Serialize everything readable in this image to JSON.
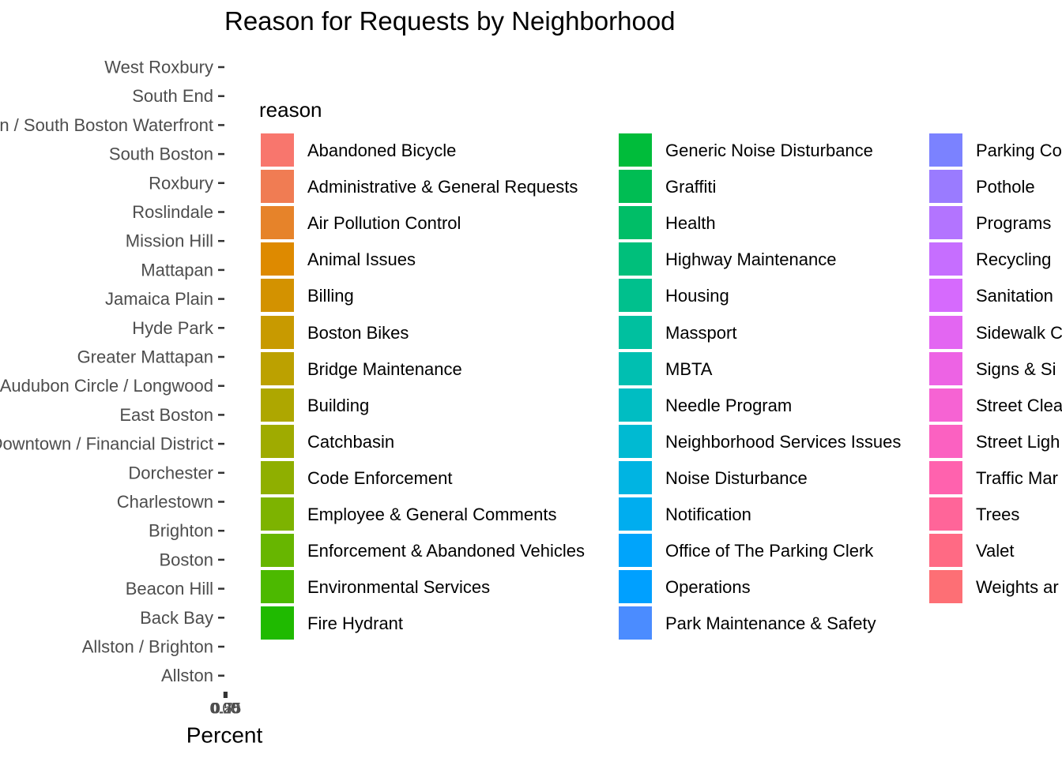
{
  "chart_data": {
    "type": "bar",
    "orientation": "horizontal",
    "stacked": true,
    "title": "Reason for Requests by Neighborhood",
    "xlabel": "Percent",
    "ylabel": "",
    "categories": [
      "West Roxbury",
      "South End",
      "South Boston / South Boston Waterfront",
      "South Boston",
      "Roxbury",
      "Roslindale",
      "Mission Hill",
      "Mattapan",
      "Jamaica Plain",
      "Hyde Park",
      "Greater Mattapan",
      "Fenway / Kenmore / Audubon Circle / Longwood",
      "East Boston",
      "Downtown / Financial District",
      "Dorchester",
      "Charlestown",
      "Brighton",
      "Boston",
      "Beacon Hill",
      "Back Bay",
      "Allston / Brighton",
      "Allston"
    ],
    "x_tick_labels": [
      "0.00",
      "0.25",
      "0.50",
      "0.75"
    ],
    "grid": false,
    "legend": {
      "title": "reason",
      "placement": "right",
      "items": [
        {
          "label": "Abandoned Bicycle",
          "color": "#F8766D"
        },
        {
          "label": "Administrative & General Requests",
          "color": "#F07C53"
        },
        {
          "label": "Air Pollution Control",
          "color": "#E6832A"
        },
        {
          "label": "Animal Issues",
          "color": "#DE8A00"
        },
        {
          "label": "Billing",
          "color": "#D39200"
        },
        {
          "label": "Boston Bikes",
          "color": "#C89A00"
        },
        {
          "label": "Bridge Maintenance",
          "color": "#BCA100"
        },
        {
          "label": "Building",
          "color": "#AEA700"
        },
        {
          "label": "Catchbasin",
          "color": "#9FAB00"
        },
        {
          "label": "Code Enforcement",
          "color": "#8FAF00"
        },
        {
          "label": "Employee & General Comments",
          "color": "#7DB300"
        },
        {
          "label": "Enforcement & Abandoned Vehicles",
          "color": "#67B600"
        },
        {
          "label": "Environmental Services",
          "color": "#4CB900"
        },
        {
          "label": "Fire Hydrant",
          "color": "#1FBA00"
        },
        {
          "label": "Generic Noise Disturbance",
          "color": "#00BC3A"
        },
        {
          "label": "Graffiti",
          "color": "#00BD53"
        },
        {
          "label": "Health",
          "color": "#00BE67"
        },
        {
          "label": "Highway Maintenance",
          "color": "#00BF7B"
        },
        {
          "label": "Housing",
          "color": "#00C08D"
        },
        {
          "label": "Massport",
          "color": "#00C09F"
        },
        {
          "label": "MBTA",
          "color": "#00BFB1"
        },
        {
          "label": "Needle Program",
          "color": "#00BDC2"
        },
        {
          "label": "Neighborhood Services Issues",
          "color": "#00BAD2"
        },
        {
          "label": "Noise Disturbance",
          "color": "#00B4E2"
        },
        {
          "label": "Notification",
          "color": "#00ADEF"
        },
        {
          "label": "Office of The Parking Clerk",
          "color": "#00A4FB"
        },
        {
          "label": "Operations",
          "color": "#00A0FF"
        },
        {
          "label": "Park Maintenance & Safety",
          "color": "#4B8CFF"
        },
        {
          "label": "Parking Co",
          "color": "#7B82FF"
        },
        {
          "label": "Pothole",
          "color": "#9A7BFF"
        },
        {
          "label": "Programs",
          "color": "#B374FF"
        },
        {
          "label": "Recycling",
          "color": "#C66EFF"
        },
        {
          "label": "Sanitation",
          "color": "#D66AFD"
        },
        {
          "label": "Sidewalk C",
          "color": "#E366F2"
        },
        {
          "label": "Signs & Si",
          "color": "#ED63E4"
        },
        {
          "label": "Street Clea",
          "color": "#F663D3"
        },
        {
          "label": "Street Ligh",
          "color": "#FB61C1"
        },
        {
          "label": "Traffic Mar",
          "color": "#FF62AE"
        },
        {
          "label": "Trees",
          "color": "#FF6599"
        },
        {
          "label": "Valet",
          "color": "#FF6A84"
        },
        {
          "label": "Weights ar",
          "color": "#FD6F75"
        }
      ]
    }
  }
}
